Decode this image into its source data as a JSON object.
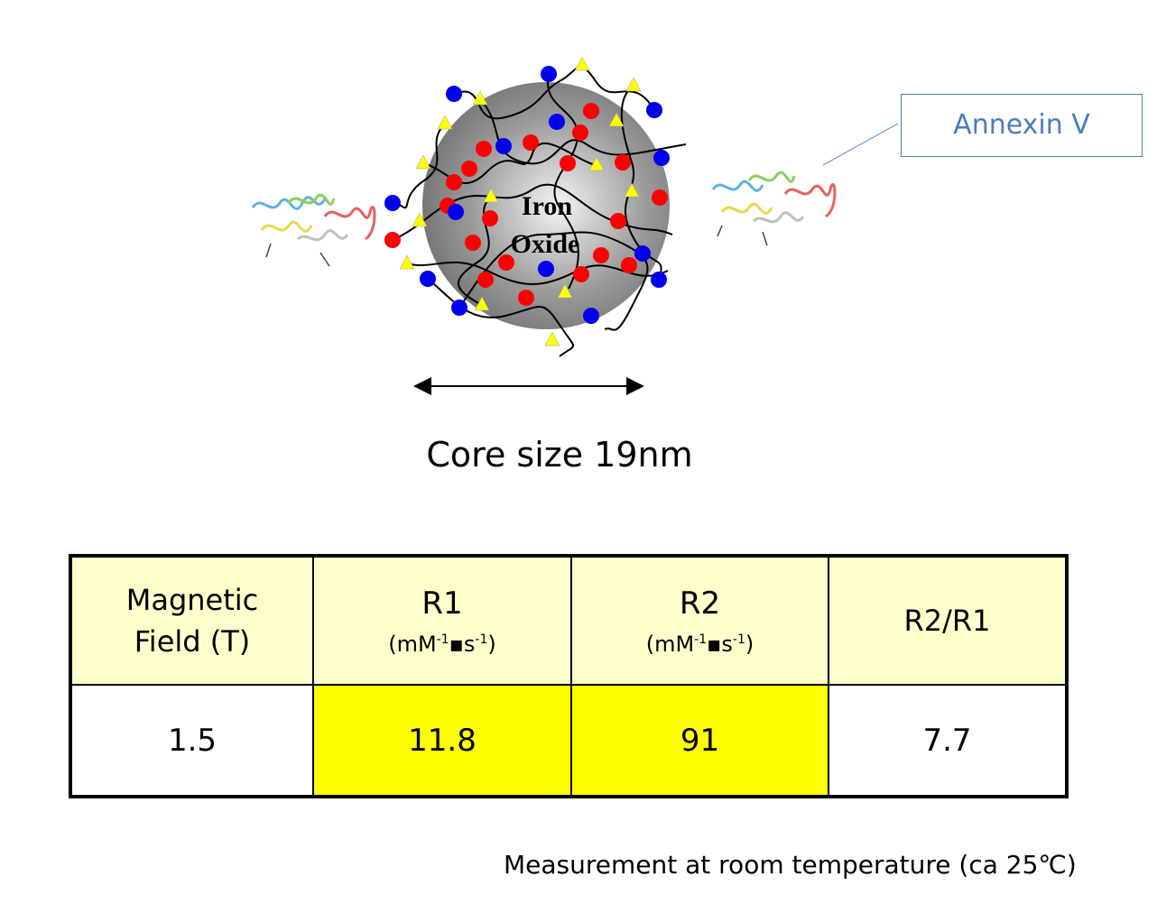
{
  "diagram": {
    "core_label": [
      "Iron",
      "Oxide"
    ],
    "ligand_label": "Annexin V",
    "size_label": "Core size 19nm"
  },
  "table": {
    "header": [
      {
        "lines": [
          "Magnetic",
          "Field (T)"
        ]
      },
      {
        "name": "R1",
        "unit": {
          "pre": "(mM",
          "sup1": "-1",
          "mid": "▪s",
          "sup2": "-1",
          "post": ")"
        }
      },
      {
        "name": "R2",
        "unit": {
          "pre": "(mM",
          "sup1": "-1",
          "mid": "▪s",
          "sup2": "-1",
          "post": ")"
        }
      },
      {
        "lines": [
          "R2/R1"
        ]
      }
    ],
    "rows": [
      [
        "1.5",
        "11.8",
        "91",
        "7.7"
      ]
    ]
  },
  "footnote": "Measurement at room temperature (ca 25℃)"
}
